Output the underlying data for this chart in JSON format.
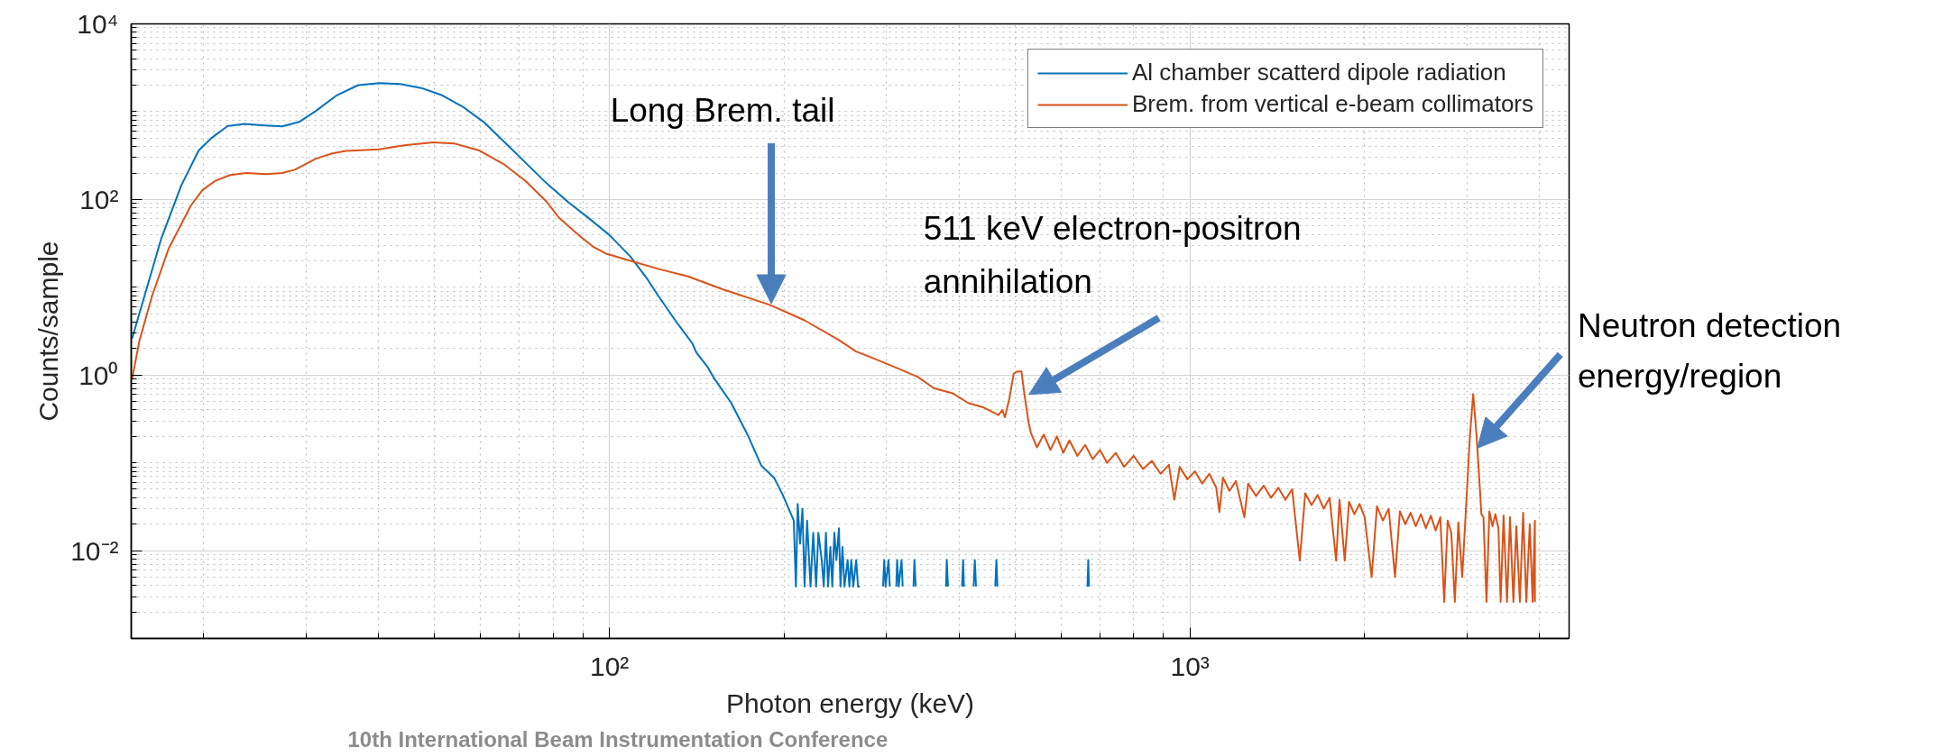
{
  "chart_data": {
    "type": "line",
    "xlabel": "Photon energy (keV)",
    "ylabel": "Counts/sample",
    "log": "xy",
    "grid": true,
    "legend": "top right",
    "xlim": [
      15,
      4500
    ],
    "ylim": [
      0.001,
      10000
    ],
    "xticks": [
      {
        "value": 100,
        "label": "10²"
      },
      {
        "value": 1000,
        "label": "10³"
      }
    ],
    "yticks": [
      {
        "value": 0.01,
        "label": "10⁻²"
      },
      {
        "value": 1,
        "label": "10⁰"
      },
      {
        "value": 100,
        "label": "10²"
      },
      {
        "value": 10000,
        "label": "10⁴"
      }
    ],
    "series": [
      {
        "name": "Al chamber scatterd dipole radiation",
        "color": "#0072bd",
        "x": [
          15.05,
          16.9,
          18.3,
          19.6,
          20.6,
          22.0,
          23.5,
          25.1,
          27.3,
          29.2,
          31.2,
          33.9,
          36.9,
          40.1,
          43.6,
          47.4,
          51.5,
          55.9,
          60.7,
          66.0,
          71.7,
          77.9,
          84.7,
          92.0,
          100,
          108.7,
          116.2,
          121.2,
          129.8,
          138.9,
          141.2,
          147.5,
          151.1,
          162.1,
          173.5,
          182.6,
          192.3,
          198.9,
          207.7,
          209.5,
          211,
          213,
          215,
          216.8,
          219,
          222,
          224.4,
          227,
          229,
          232.1,
          234,
          236,
          238,
          240.2,
          242,
          244,
          246,
          248.5,
          250,
          252,
          254,
          257.2,
          259,
          261,
          263,
          266.1,
          268,
          270,
          283,
          296,
          297.4,
          299,
          302.5,
          304,
          308,
          312,
          313,
          315,
          318.5,
          320,
          327,
          334,
          335.2,
          337,
          360,
          380,
          381.1,
          383,
          395,
          405,
          406.7,
          408,
          416,
          424,
          426,
          428,
          445,
          462,
          464,
          466,
          600,
          666,
          668.1,
          670
        ],
        "values": [
          2.6,
          36,
          145,
          361,
          498,
          687,
          724,
          701,
          679,
          764,
          1020,
          1535,
          2006,
          2114,
          2069,
          1860,
          1535,
          1136,
          764,
          447,
          262,
          153,
          94.5,
          61.6,
          39.3,
          22.3,
          12.4,
          8.1,
          4.2,
          2.3,
          1.8,
          1.24,
          0.94,
          0.48,
          0.2,
          0.093,
          0.067,
          0.043,
          0.022,
          0.0039,
          0.034,
          0.012,
          0.03,
          0.0039,
          0.022,
          0.0039,
          0.016,
          0.0039,
          0.016,
          0.0078,
          0.0039,
          0.016,
          0.0039,
          0.011,
          0.0039,
          0.016,
          0.0078,
          0.018,
          0.0039,
          0.011,
          0.0039,
          0.0078,
          0.0039,
          0.0078,
          0.0039,
          0.0078,
          0.0039,
          0.0039,
          null,
          0.0039,
          0.0078,
          0.0039,
          0.0078,
          0.0039,
          null,
          0.0039,
          0.0078,
          0.0039,
          0.0078,
          0.0039,
          null,
          0.0039,
          0.0078,
          0.0039,
          null,
          0.0039,
          0.0078,
          0.0039,
          null,
          0.0039,
          0.0078,
          0.0039,
          null,
          0.0039,
          0.0078,
          0.0039,
          null,
          0.0039,
          0.0078,
          0.0039,
          null,
          0.0039,
          0.0078,
          0.0039
        ]
      },
      {
        "name": "Brem. from vertical e-beam collimators",
        "color": "#d95319",
        "x": [
          15.05,
          15.5,
          16.3,
          17.4,
          19.0,
          19.9,
          20.9,
          22.2,
          23.7,
          25.6,
          27.3,
          28.7,
          31.2,
          33.3,
          35.1,
          40.1,
          44.3,
          49.7,
          54.1,
          59.7,
          66.0,
          71.7,
          77.9,
          81.9,
          89.0,
          93.6,
          98.4,
          108.7,
          121.7,
          136.6,
          156.6,
          189,
          216.8,
          248.5,
          266,
          285,
          316,
          340,
          362,
          390,
          415,
          440,
          468,
          475,
          480,
          488.6,
          497,
          505,
          512.6,
          518.7,
          527.7,
          532,
          545,
          560,
          575,
          590,
          605,
          620,
          640,
          660,
          680,
          700,
          720,
          745,
          770,
          800,
          830,
          860,
          890,
          920,
          940,
          960,
          990,
          1020,
          1050,
          1080,
          1110,
          1124,
          1140,
          1170,
          1200,
          1241,
          1260,
          1300,
          1340,
          1380,
          1420,
          1460,
          1500,
          1546,
          1580,
          1620,
          1660,
          1700,
          1740,
          1786,
          1810,
          1848,
          1880,
          1920,
          1960,
          2000,
          2056,
          2100,
          2150,
          2200,
          2256,
          2300,
          2350,
          2400,
          2450,
          2500,
          2550,
          2600,
          2650,
          2700,
          2742,
          2780,
          2820,
          2860,
          2900,
          2945,
          2979,
          3010,
          3036,
          3076,
          3118,
          3150,
          3178,
          3204,
          3243,
          3280,
          3320,
          3360,
          3400,
          3430,
          3470,
          3518,
          3560,
          3608,
          3650,
          3702,
          3750,
          3798,
          3850,
          3895,
          3929,
          3930
        ],
        "values": [
          0.9,
          2.48,
          8.05,
          27.6,
          85,
          128,
          162,
          190,
          200,
          194,
          200,
          218,
          291,
          335,
          357,
          373,
          415,
          447,
          433,
          361,
          248,
          162,
          94.5,
          61.6,
          38,
          29.1,
          24.3,
          20,
          16.1,
          13.3,
          9.5,
          6.3,
          4.2,
          2.5,
          1.85,
          1.55,
          1.17,
          0.95,
          0.71,
          0.62,
          0.48,
          0.43,
          0.35,
          0.4,
          0.33,
          0.54,
          1.04,
          1.1,
          1.1,
          0.6,
          0.28,
          0.22,
          0.15,
          0.21,
          0.14,
          0.2,
          0.13,
          0.18,
          0.12,
          0.16,
          0.11,
          0.14,
          0.1,
          0.13,
          0.09,
          0.12,
          0.085,
          0.105,
          0.075,
          0.095,
          0.038,
          0.09,
          0.065,
          0.08,
          0.058,
          0.075,
          0.052,
          0.0275,
          0.068,
          0.048,
          0.062,
          0.024,
          0.058,
          0.042,
          0.055,
          0.04,
          0.052,
          0.038,
          0.05,
          0.0077,
          0.045,
          0.033,
          0.043,
          0.03,
          0.04,
          0.0077,
          0.038,
          0.0077,
          0.036,
          0.026,
          0.034,
          0.024,
          0.005,
          0.032,
          0.022,
          0.03,
          0.005,
          0.028,
          0.02,
          0.027,
          0.019,
          0.026,
          0.018,
          0.025,
          0.017,
          0.024,
          0.0026,
          0.022,
          0.016,
          0.0026,
          0.021,
          0.005,
          0.02,
          0.069,
          0.2,
          0.61,
          0.2,
          0.069,
          0.026,
          0.024,
          0.0026,
          0.028,
          0.019,
          0.026,
          0.018,
          0.0026,
          0.025,
          0.0026,
          0.024,
          0.0026,
          0.019,
          0.0026,
          0.027,
          0.0026,
          0.02,
          0.0026,
          0.022,
          0.0026
        ]
      }
    ],
    "annotations": [
      {
        "text": "Long Brem. tail",
        "x": 190,
        "y": 6.5
      },
      {
        "text": "511 keV electron-positron\nannihilation",
        "x": 528,
        "y": 0.6
      },
      {
        "text": "Neutron detection\nenergy/region",
        "x": 3127,
        "y": 0.147
      },
      "10th International Beam Instrumentation Conference"
    ]
  }
}
